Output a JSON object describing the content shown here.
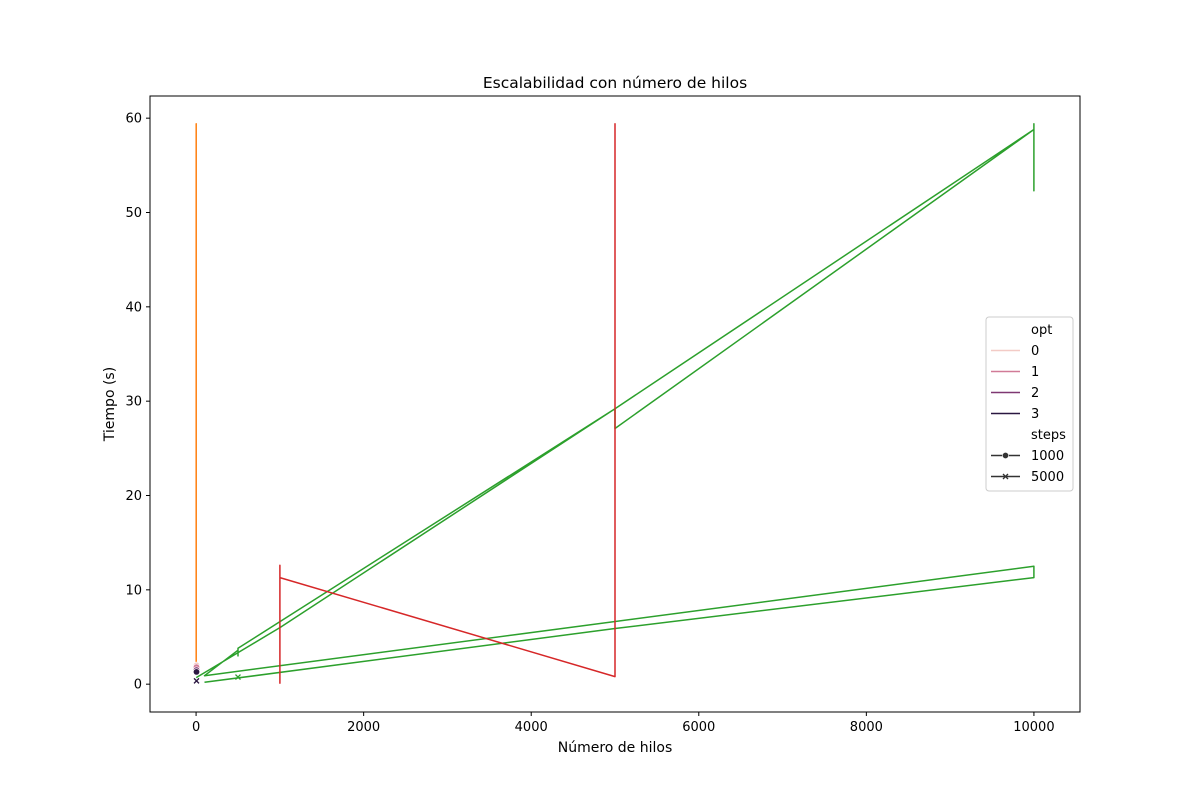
{
  "chart_data": {
    "type": "line",
    "title": "Escalabilidad con número de hilos",
    "xlabel": "Número de hilos",
    "ylabel": "Tiempo (s)",
    "xlim": [
      -550,
      10550
    ],
    "ylim": [
      -2.95,
      62.35
    ],
    "xticks": [
      0,
      2000,
      4000,
      6000,
      8000,
      10000
    ],
    "yticks": [
      0,
      10,
      20,
      30,
      40,
      50,
      60
    ],
    "grid": false,
    "legend_position": "center-right",
    "legend": {
      "hue_title": "opt",
      "hue_entries": [
        {
          "label": "0",
          "color": "#f3cbc6"
        },
        {
          "label": "1",
          "color": "#d17b97"
        },
        {
          "label": "2",
          "color": "#7f3872"
        },
        {
          "label": "3",
          "color": "#2a1741"
        }
      ],
      "style_title": "steps",
      "style_entries": [
        {
          "label": "1000",
          "marker": "circle"
        },
        {
          "label": "5000",
          "marker": "x"
        }
      ]
    },
    "series": [
      {
        "color": "#ff7f0e",
        "x": [
          1,
          1,
          1,
          1
        ],
        "y": [
          2,
          59.4,
          26,
          59.4
        ]
      },
      {
        "color": "#2ca02c",
        "x": [
          1,
          1000,
          5000,
          5000,
          10000,
          10000,
          10000,
          10000,
          5000,
          500,
          500,
          500,
          100,
          10000,
          10000,
          5000,
          100
        ],
        "y": [
          0.7,
          6,
          29.2,
          27.1,
          58.8,
          59.4,
          52.3,
          58.8,
          29.2,
          3.8,
          3.0,
          3.6,
          0.9,
          12.5,
          11.3,
          5.9,
          0.2
        ]
      },
      {
        "color": "#d62728",
        "x": [
          1000,
          1000,
          1000,
          5000,
          5000,
          5000
        ],
        "y": [
          0.05,
          12.6,
          11.3,
          0.8,
          59.4,
          1
        ]
      }
    ],
    "points": [
      {
        "x": 5,
        "y": 2.0,
        "marker": "circle",
        "color": "#f3cbc6"
      },
      {
        "x": 5,
        "y": 1.8,
        "marker": "circle",
        "color": "#d17b97"
      },
      {
        "x": 5,
        "y": 1.5,
        "marker": "circle",
        "color": "#7f3872"
      },
      {
        "x": 5,
        "y": 1.3,
        "marker": "circle",
        "color": "#2a1741"
      },
      {
        "x": 5,
        "y": 0.35,
        "marker": "x",
        "color": "#2a1741"
      },
      {
        "x": 500,
        "y": 0.75,
        "marker": "x",
        "color": "#2ca02c"
      }
    ]
  }
}
